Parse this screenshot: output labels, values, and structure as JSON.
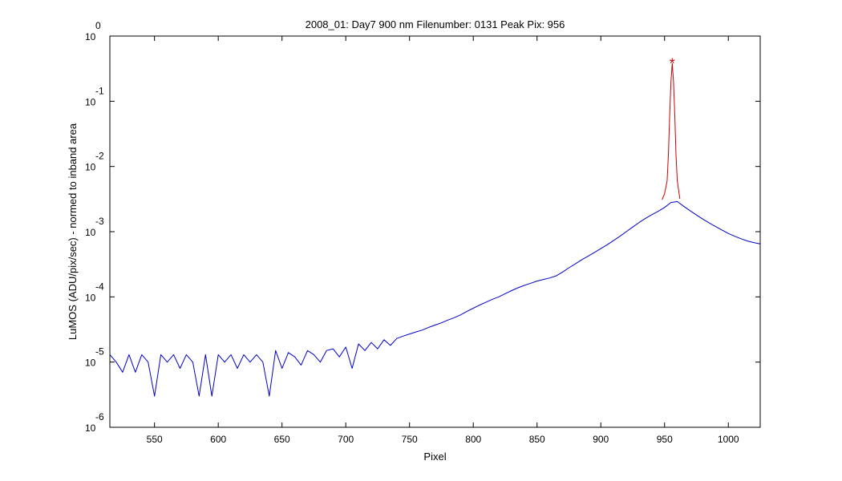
{
  "chart_data": {
    "type": "line",
    "title": "2008_01: Day7  900 nm  Filenumber: 0131 Peak Pix: 956",
    "xlabel": "Pixel",
    "ylabel": "LuMOS (ADU/pix/sec) - normed to inband area",
    "xlim": [
      515,
      1025
    ],
    "ylim": [
      1e-06,
      1
    ],
    "yscale": "log",
    "grid": false,
    "x_ticks": [
      "550",
      "600",
      "650",
      "700",
      "750",
      "800",
      "850",
      "900",
      "950",
      "1000"
    ],
    "y_ticks": [
      {
        "base": "10",
        "exp": "0"
      },
      {
        "base": "10",
        "exp": "-1"
      },
      {
        "base": "10",
        "exp": "-2"
      },
      {
        "base": "10",
        "exp": "-3"
      },
      {
        "base": "10",
        "exp": "-4"
      },
      {
        "base": "10",
        "exp": "-5"
      },
      {
        "base": "10",
        "exp": "-6"
      }
    ],
    "series": [
      {
        "role": "out-of-band",
        "color": "#0000cc",
        "x": [
          515,
          520,
          525,
          530,
          535,
          540,
          545,
          550,
          555,
          560,
          565,
          570,
          575,
          580,
          585,
          590,
          595,
          600,
          605,
          610,
          615,
          620,
          625,
          630,
          635,
          640,
          645,
          650,
          655,
          660,
          665,
          670,
          675,
          680,
          685,
          690,
          695,
          700,
          705,
          710,
          715,
          720,
          725,
          730,
          735,
          740,
          745,
          750,
          755,
          760,
          765,
          770,
          775,
          780,
          785,
          790,
          795,
          800,
          805,
          810,
          815,
          820,
          825,
          830,
          835,
          840,
          845,
          850,
          855,
          860,
          865,
          870,
          875,
          880,
          885,
          890,
          895,
          900,
          905,
          910,
          915,
          920,
          925,
          930,
          935,
          940,
          945,
          950,
          955,
          960,
          965,
          970,
          975,
          980,
          985,
          990,
          995,
          1000,
          1005,
          1010,
          1015,
          1020,
          1025
        ],
        "y": [
          1.3e-05,
          1e-05,
          7e-06,
          1.3e-05,
          7e-06,
          1.3e-05,
          1e-05,
          3e-06,
          1.3e-05,
          1e-05,
          1.3e-05,
          8e-06,
          1.3e-05,
          1e-05,
          3e-06,
          1.3e-05,
          3e-06,
          1.3e-05,
          1e-05,
          1.3e-05,
          8e-06,
          1.3e-05,
          1e-05,
          1.3e-05,
          1e-05,
          3e-06,
          1.5e-05,
          8e-06,
          1.4e-05,
          1.2e-05,
          9e-06,
          1.5e-05,
          1.3e-05,
          1e-05,
          1.5e-05,
          1.6e-05,
          1.2e-05,
          1.7e-05,
          8e-06,
          1.9e-05,
          1.5e-05,
          2e-05,
          1.6e-05,
          2.2e-05,
          1.8e-05,
          2.3e-05,
          2.5e-05,
          2.7e-05,
          2.9e-05,
          3.1e-05,
          3.4e-05,
          3.7e-05,
          4e-05,
          4.4e-05,
          4.8e-05,
          5.3e-05,
          6e-05,
          6.7e-05,
          7.5e-05,
          8.3e-05,
          9.2e-05,
          0.0001,
          0.000112,
          0.000125,
          0.000138,
          0.00015,
          0.000162,
          0.000175,
          0.000185,
          0.000195,
          0.00021,
          0.00024,
          0.00028,
          0.00032,
          0.00037,
          0.00042,
          0.00048,
          0.00055,
          0.00063,
          0.00073,
          0.00085,
          0.001,
          0.00118,
          0.00138,
          0.0016,
          0.00182,
          0.00205,
          0.00235,
          0.0028,
          0.0029,
          0.00245,
          0.0021,
          0.0018,
          0.00156,
          0.00136,
          0.0012,
          0.00106,
          0.00094,
          0.00085,
          0.00078,
          0.00072,
          0.00068,
          0.00065
        ]
      },
      {
        "role": "in-band",
        "color": "#cc0000",
        "x": [
          948,
          950,
          952,
          953,
          954,
          955,
          956,
          957,
          958,
          959,
          960,
          962
        ],
        "y": [
          0.0031,
          0.0038,
          0.006,
          0.015,
          0.06,
          0.2,
          0.38,
          0.2,
          0.06,
          0.015,
          0.006,
          0.0032
        ]
      }
    ],
    "peak_marker": {
      "x": 956,
      "y": 0.42,
      "symbol": "*",
      "color": "#cc0000"
    }
  }
}
